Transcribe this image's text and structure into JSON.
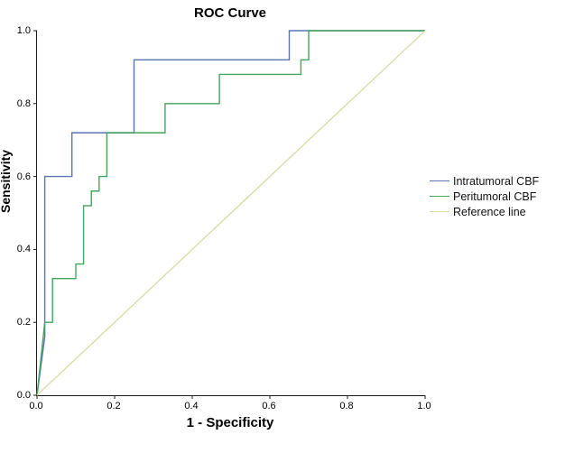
{
  "chart_data": {
    "type": "line",
    "title": "ROC Curve",
    "xlabel": "1 - Specificity",
    "ylabel": "Sensitivity",
    "xlim": [
      0.0,
      1.0
    ],
    "ylim": [
      0.0,
      1.0
    ],
    "xticks": [
      0.0,
      0.2,
      0.4,
      0.6,
      0.8,
      1.0
    ],
    "yticks": [
      0.0,
      0.2,
      0.4,
      0.6,
      0.8,
      1.0
    ],
    "grid": false,
    "legend_position": "right",
    "series": [
      {
        "name": "Intratumoral CBF",
        "color": "#5a74b4",
        "points": [
          [
            0,
            0
          ],
          [
            0.02,
            0.16
          ],
          [
            0.02,
            0.6
          ],
          [
            0.09,
            0.6
          ],
          [
            0.09,
            0.72
          ],
          [
            0.25,
            0.72
          ],
          [
            0.25,
            0.92
          ],
          [
            0.65,
            0.92
          ],
          [
            0.65,
            1.0
          ],
          [
            1,
            1
          ]
        ]
      },
      {
        "name": "Peritumoral CBF",
        "color": "#44a55c",
        "points": [
          [
            0,
            0
          ],
          [
            0.02,
            0.2
          ],
          [
            0.04,
            0.2
          ],
          [
            0.04,
            0.32
          ],
          [
            0.1,
            0.32
          ],
          [
            0.1,
            0.36
          ],
          [
            0.12,
            0.36
          ],
          [
            0.12,
            0.52
          ],
          [
            0.14,
            0.52
          ],
          [
            0.14,
            0.56
          ],
          [
            0.16,
            0.56
          ],
          [
            0.16,
            0.6
          ],
          [
            0.18,
            0.6
          ],
          [
            0.18,
            0.72
          ],
          [
            0.33,
            0.72
          ],
          [
            0.33,
            0.8
          ],
          [
            0.47,
            0.8
          ],
          [
            0.47,
            0.88
          ],
          [
            0.68,
            0.88
          ],
          [
            0.68,
            0.92
          ],
          [
            0.7,
            0.92
          ],
          [
            0.7,
            1.0
          ],
          [
            1,
            1
          ]
        ]
      },
      {
        "name": "Reference line",
        "color": "#dcdcaa",
        "points": [
          [
            0,
            0
          ],
          [
            1,
            1
          ]
        ]
      }
    ]
  }
}
